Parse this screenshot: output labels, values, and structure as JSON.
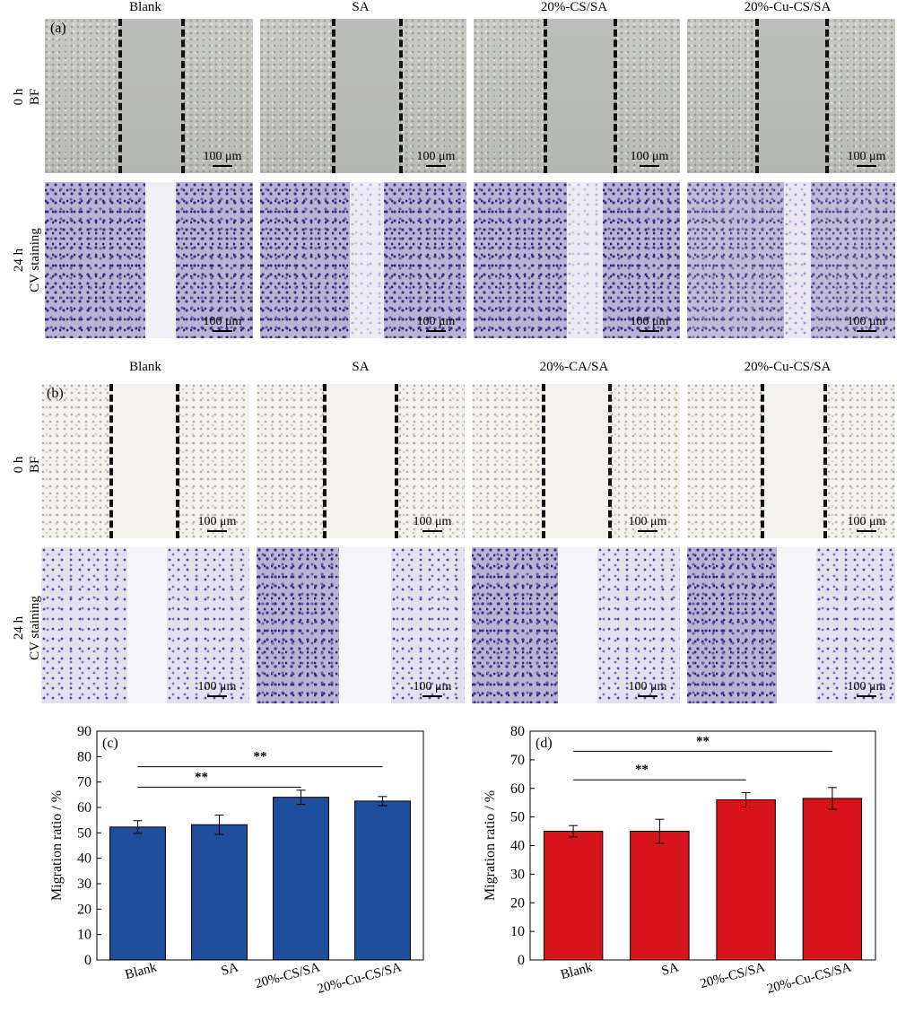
{
  "panel_a": {
    "letter": "(a)",
    "columns": [
      "Blank",
      "SA",
      "20%-CS/SA",
      "20%-Cu-CS/SA"
    ],
    "rows": [
      {
        "line1": "0 h",
        "line2": "BF"
      },
      {
        "line1": "24 h",
        "line2": "CV staining"
      }
    ],
    "scale_label": "100 μm"
  },
  "panel_b": {
    "letter": "(b)",
    "columns": [
      "Blank",
      "SA",
      "20%-CA/SA",
      "20%-Cu-CS/SA"
    ],
    "rows": [
      {
        "line1": "0 h",
        "line2": "BF"
      },
      {
        "line1": "24 h",
        "line2": "CV staining"
      }
    ],
    "scale_label": "100 μm"
  },
  "chart_data": [
    {
      "panel": "(c)",
      "type": "bar",
      "categories": [
        "Blank",
        "SA",
        "20%-CS/SA",
        "20%-Cu-CS/SA"
      ],
      "values": [
        52.3,
        53.2,
        64.0,
        62.5
      ],
      "errors": [
        2.5,
        3.8,
        2.8,
        1.8
      ],
      "color": "#1f4e9c",
      "ylabel": "Migration ratio / %",
      "ylim": [
        0,
        90
      ],
      "yticks": [
        0,
        10,
        20,
        30,
        40,
        50,
        60,
        70,
        80,
        90
      ],
      "significance": [
        {
          "from": 0,
          "to": 3,
          "label": "**",
          "y": 76
        },
        {
          "from": 0,
          "to": 2,
          "label": "**",
          "y": 68
        }
      ]
    },
    {
      "panel": "(d)",
      "type": "bar",
      "categories": [
        "Blank",
        "SA",
        "20%-CS/SA",
        "20%-Cu-CS/SA"
      ],
      "values": [
        45.0,
        45.0,
        56.0,
        56.5
      ],
      "errors": [
        2.0,
        4.2,
        2.5,
        3.8
      ],
      "color": "#d7141c",
      "ylabel": "Migration ratio / %",
      "ylim": [
        0,
        80
      ],
      "yticks": [
        0,
        10,
        20,
        30,
        40,
        50,
        60,
        70,
        80
      ],
      "significance": [
        {
          "from": 0,
          "to": 3,
          "label": "**",
          "y": 73
        },
        {
          "from": 0,
          "to": 2,
          "label": "**",
          "y": 63
        }
      ]
    }
  ]
}
